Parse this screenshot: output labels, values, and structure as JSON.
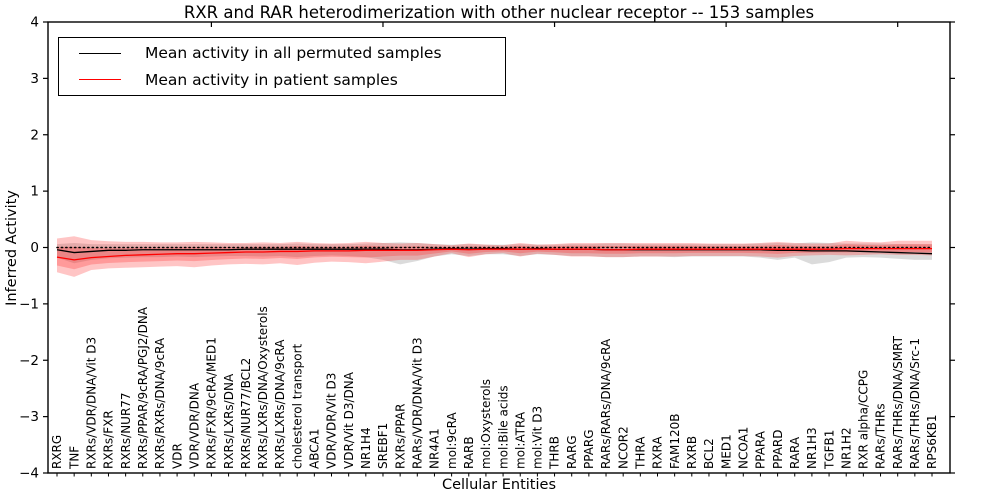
{
  "chart_data": {
    "type": "line",
    "title": "RXR and RAR heterodimerization with other nuclear receptor -- 153 samples",
    "xlabel": "Cellular Entities",
    "ylabel": "Inferred Activity",
    "ylim": [
      -4,
      4
    ],
    "ytick_labels": [
      "4",
      "3",
      "2",
      "1",
      "0",
      "−1",
      "−2",
      "−3",
      "−4"
    ],
    "yticks": [
      4,
      3,
      2,
      1,
      0,
      -1,
      -2,
      -3,
      -4
    ],
    "grid": false,
    "zero_line": {
      "y": 0,
      "style": "dotted",
      "color": "#000000"
    },
    "legend": {
      "position": "upper-left",
      "entries": [
        {
          "label": "Mean activity in all permuted samples",
          "color": "#000000"
        },
        {
          "label": "Mean activity in patient samples",
          "color": "#ff0000"
        }
      ]
    },
    "categories": [
      "RXRG",
      "TNF",
      "RXRs/VDR/DNA/Vit D3",
      "RXRs/FXR",
      "RXRs/NUR77",
      "RXRs/PPAR/9cRA/PGJ2/DNA",
      "RXRs/RXRs/DNA/9cRA",
      "VDR",
      "VDR/VDR/DNA",
      "RXRs/FXR/9cRA/MED1",
      "RXRs/LXRs/DNA",
      "RXRs/NUR77/BCL2",
      "RXRs/LXRs/DNA/Oxysterols",
      "RXRs/LXRs/DNA/9cRA",
      "cholesterol transport",
      "ABCA1",
      "VDR/VDR/Vit D3",
      "VDR/Vit D3/DNA",
      "NR1H4",
      "SREBF1",
      "RXRs/PPAR",
      "RARs/VDR/DNA/Vit D3",
      "NR4A1",
      "mol:9cRA",
      "RARB",
      "mol:Oxysterols",
      "mol:Bile acids",
      "mol:ATRA",
      "mol:Vit D3",
      "THRB",
      "RARG",
      "PPARG",
      "RARs/RARs/DNA/9cRA",
      "NCOR2",
      "THRA",
      "RXRA",
      "FAM120B",
      "RXRB",
      "BCL2",
      "MED1",
      "NCOA1",
      "PPARA",
      "PPARD",
      "RARA",
      "NR1H3",
      "TGFB1",
      "NR1H2",
      "RXR alpha/CCPG",
      "RARs/THRs",
      "RARs/THRs/DNA/SMRT",
      "RARs/THRs/DNA/Src-1",
      "RPS6KB1"
    ],
    "series": [
      {
        "name": "Mean activity in all permuted samples",
        "color": "#000000",
        "band_color": "rgba(125,125,125,0.28)",
        "values": [
          -0.04,
          -0.09,
          -0.07,
          -0.05,
          -0.05,
          -0.04,
          -0.04,
          -0.04,
          -0.04,
          -0.04,
          -0.04,
          -0.03,
          -0.03,
          -0.03,
          -0.03,
          -0.03,
          -0.03,
          -0.03,
          -0.03,
          -0.03,
          -0.04,
          -0.04,
          -0.03,
          -0.02,
          -0.03,
          -0.02,
          -0.02,
          -0.03,
          -0.02,
          -0.03,
          -0.03,
          -0.03,
          -0.04,
          -0.04,
          -0.04,
          -0.04,
          -0.04,
          -0.04,
          -0.04,
          -0.04,
          -0.04,
          -0.04,
          -0.05,
          -0.05,
          -0.06,
          -0.06,
          -0.06,
          -0.07,
          -0.08,
          -0.09,
          -0.1,
          -0.11
        ],
        "band_upper": [
          0.06,
          0.08,
          0.06,
          0.06,
          0.06,
          0.06,
          0.06,
          0.06,
          0.06,
          0.06,
          0.06,
          0.06,
          0.06,
          0.06,
          0.07,
          0.06,
          0.06,
          0.06,
          0.07,
          0.08,
          0.09,
          0.08,
          0.06,
          0.05,
          0.06,
          0.05,
          0.05,
          0.06,
          0.05,
          0.05,
          0.06,
          0.06,
          0.07,
          0.07,
          0.06,
          0.06,
          0.06,
          0.06,
          0.06,
          0.06,
          0.06,
          0.07,
          0.08,
          0.07,
          0.09,
          0.08,
          0.07,
          0.07,
          0.07,
          0.06,
          0.06,
          0.06
        ],
        "band_lower": [
          -0.18,
          -0.28,
          -0.22,
          -0.19,
          -0.18,
          -0.17,
          -0.17,
          -0.16,
          -0.17,
          -0.16,
          -0.15,
          -0.15,
          -0.16,
          -0.15,
          -0.17,
          -0.15,
          -0.14,
          -0.15,
          -0.17,
          -0.22,
          -0.3,
          -0.24,
          -0.16,
          -0.12,
          -0.15,
          -0.12,
          -0.12,
          -0.15,
          -0.12,
          -0.13,
          -0.15,
          -0.15,
          -0.17,
          -0.17,
          -0.16,
          -0.16,
          -0.17,
          -0.16,
          -0.16,
          -0.16,
          -0.16,
          -0.18,
          -0.22,
          -0.18,
          -0.3,
          -0.26,
          -0.18,
          -0.17,
          -0.18,
          -0.2,
          -0.22,
          -0.22
        ]
      },
      {
        "name": "Mean activity in patient samples",
        "color": "#ff0000",
        "band_color": "rgba(255,30,30,0.26)",
        "values": [
          -0.17,
          -0.22,
          -0.18,
          -0.16,
          -0.14,
          -0.13,
          -0.12,
          -0.11,
          -0.11,
          -0.1,
          -0.09,
          -0.08,
          -0.08,
          -0.07,
          -0.07,
          -0.06,
          -0.06,
          -0.06,
          -0.05,
          -0.05,
          -0.05,
          -0.05,
          -0.04,
          -0.03,
          -0.04,
          -0.03,
          -0.03,
          -0.03,
          -0.03,
          -0.03,
          -0.03,
          -0.03,
          -0.04,
          -0.04,
          -0.03,
          -0.03,
          -0.03,
          -0.03,
          -0.03,
          -0.03,
          -0.03,
          -0.03,
          -0.03,
          -0.03,
          -0.03,
          -0.03,
          -0.02,
          -0.02,
          -0.02,
          -0.02,
          -0.02,
          -0.02
        ],
        "band_upper": [
          0.16,
          0.2,
          0.13,
          0.11,
          0.1,
          0.1,
          0.09,
          0.09,
          0.1,
          0.09,
          0.08,
          0.08,
          0.09,
          0.08,
          0.1,
          0.08,
          0.07,
          0.08,
          0.1,
          0.08,
          0.07,
          0.08,
          0.06,
          0.04,
          0.07,
          0.05,
          0.04,
          0.08,
          0.05,
          0.06,
          0.08,
          0.08,
          0.08,
          0.08,
          0.08,
          0.08,
          0.08,
          0.08,
          0.07,
          0.07,
          0.07,
          0.08,
          0.1,
          0.08,
          0.07,
          0.07,
          0.12,
          0.1,
          0.09,
          0.12,
          0.12,
          0.12
        ],
        "band_lower": [
          -0.44,
          -0.52,
          -0.4,
          -0.37,
          -0.36,
          -0.35,
          -0.34,
          -0.33,
          -0.35,
          -0.32,
          -0.3,
          -0.29,
          -0.3,
          -0.28,
          -0.31,
          -0.27,
          -0.25,
          -0.26,
          -0.28,
          -0.25,
          -0.22,
          -0.22,
          -0.16,
          -0.1,
          -0.17,
          -0.12,
          -0.1,
          -0.16,
          -0.11,
          -0.13,
          -0.16,
          -0.16,
          -0.17,
          -0.17,
          -0.16,
          -0.16,
          -0.16,
          -0.15,
          -0.15,
          -0.15,
          -0.15,
          -0.16,
          -0.18,
          -0.15,
          -0.14,
          -0.13,
          -0.14,
          -0.13,
          -0.12,
          -0.13,
          -0.13,
          -0.14
        ]
      }
    ],
    "top_tick_category_indices": [
      9,
      19,
      29,
      39,
      49
    ]
  }
}
